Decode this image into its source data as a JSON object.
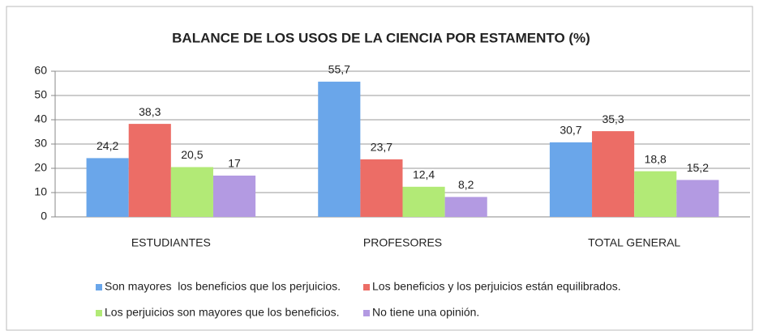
{
  "chart_data": {
    "type": "bar",
    "title": "BALANCE DE LOS USOS DE LA CIENCIA POR ESTAMENTO (%)",
    "categories": [
      "ESTUDIANTES",
      "PROFESORES",
      "TOTAL GENERAL"
    ],
    "series": [
      {
        "name": "Son mayores  los beneficios que los perjuicios.",
        "color": "#6aa6ea",
        "values": [
          24.2,
          55.7,
          30.7
        ],
        "value_labels": [
          "24,2",
          "55,7",
          "30,7"
        ]
      },
      {
        "name": "Los beneficios y los perjuicios están equilibrados.",
        "color": "#ec6d66",
        "values": [
          38.3,
          23.7,
          35.3
        ],
        "value_labels": [
          "38,3",
          "23,7",
          "35,3"
        ]
      },
      {
        "name": "Los perjuicios son mayores que los beneficios.",
        "color": "#b2ea76",
        "values": [
          20.5,
          12.4,
          18.8
        ],
        "value_labels": [
          "20,5",
          "12,4",
          "18,8"
        ]
      },
      {
        "name": "No tiene una opinión.",
        "color": "#b39ae2",
        "values": [
          17,
          8.2,
          15.2
        ],
        "value_labels": [
          "17",
          "8,2",
          "15,2"
        ]
      }
    ],
    "ylim": [
      0,
      60
    ],
    "yticks": [
      0,
      10,
      20,
      30,
      40,
      50,
      60
    ],
    "grid": true,
    "legend": "bottom"
  }
}
